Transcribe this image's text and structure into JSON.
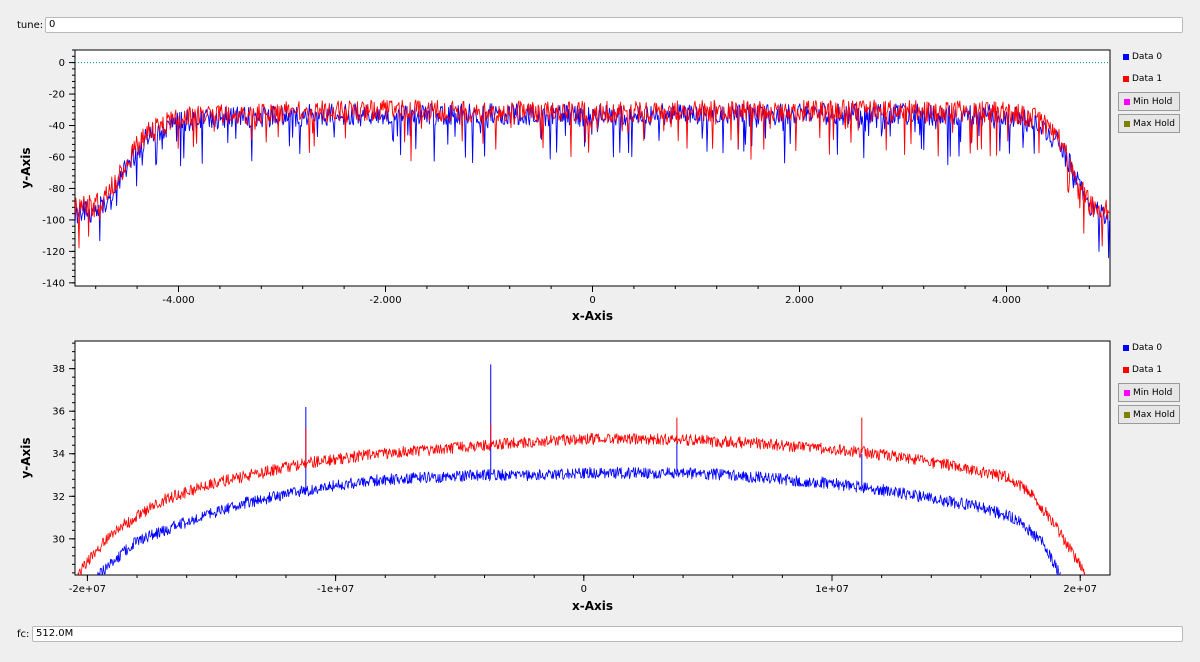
{
  "tune": {
    "label": "tune:",
    "value": "0"
  },
  "fc": {
    "label": "fc:",
    "value": "512.0M"
  },
  "legend_items": [
    {
      "label": "Data 0",
      "color": "#0000ff",
      "boxed": false
    },
    {
      "label": "Data 1",
      "color": "#ff0000",
      "boxed": false
    },
    {
      "label": "Min Hold",
      "color": "#ff00ff",
      "boxed": true
    },
    {
      "label": "Max Hold",
      "color": "#808000",
      "boxed": true
    }
  ],
  "chart_data": [
    {
      "type": "line",
      "xlabel": "x-Axis",
      "ylabel": "y-Axis",
      "xlim": [
        -5000,
        5000
      ],
      "ylim": [
        -142,
        8
      ],
      "xticks": [
        -4000,
        -2000,
        0,
        2000,
        4000
      ],
      "xtick_labels": [
        "-4.000",
        "-2.000",
        "0",
        "2.000",
        "4.000"
      ],
      "yticks": [
        0,
        -20,
        -40,
        -60,
        -80,
        -100,
        -120,
        -140
      ],
      "ytick_labels": [
        "0",
        "-20",
        "-40",
        "-60",
        "-80",
        "-100",
        "-120",
        "-140"
      ],
      "reference_line": {
        "y": 0,
        "color": "#008b8b",
        "style": "dotted"
      },
      "series": [
        {
          "name": "Data 0",
          "color": "#0000ff",
          "x": [
            -5000,
            -4800,
            -4700,
            -4500,
            -4300,
            -4000,
            -3000,
            -2000,
            -1000,
            0,
            1000,
            2000,
            3000,
            4000,
            4300,
            4500,
            4700,
            4800,
            5000
          ],
          "y": [
            -95,
            -94,
            -88,
            -65,
            -46,
            -36,
            -33,
            -32,
            -32,
            -33,
            -32,
            -32,
            -32,
            -33,
            -38,
            -50,
            -75,
            -92,
            -96
          ]
        },
        {
          "name": "Data 1",
          "color": "#ff0000",
          "x": [
            -5000,
            -4800,
            -4700,
            -4500,
            -4300,
            -4000,
            -3000,
            -2000,
            -1000,
            0,
            1000,
            2000,
            3000,
            4000,
            4300,
            4500,
            4700,
            4800,
            5000
          ],
          "y": [
            -91,
            -90,
            -85,
            -62,
            -43,
            -34,
            -31,
            -30,
            -30,
            -31,
            -30,
            -30,
            -30,
            -31,
            -35,
            -47,
            -72,
            -89,
            -93
          ]
        }
      ]
    },
    {
      "type": "line",
      "xlabel": "x-Axis",
      "ylabel": "y-Axis",
      "xlim": [
        -20500000,
        21200000
      ],
      "ylim": [
        28.3,
        39.3
      ],
      "xticks": [
        -20000000,
        -10000000,
        0,
        10000000,
        20000000
      ],
      "xtick_labels": [
        "-2e+07",
        "-1e+07",
        "0",
        "1e+07",
        "2e+07"
      ],
      "yticks": [
        30,
        32,
        34,
        36,
        38
      ],
      "ytick_labels": [
        "30",
        "32",
        "34",
        "36",
        "38"
      ],
      "series": [
        {
          "name": "Data 0",
          "color": "#0000ff",
          "x": [
            -19600000,
            -18000000,
            -16000000,
            -14000000,
            -12000000,
            -10000000,
            -8000000,
            -6000000,
            -4000000,
            -2000000,
            0,
            2000000,
            4000000,
            6000000,
            8000000,
            10000000,
            12000000,
            14000000,
            16000000,
            17500000,
            18500000,
            19200000
          ],
          "y": [
            28.3,
            29.9,
            30.8,
            31.6,
            32.1,
            32.5,
            32.8,
            32.9,
            33.0,
            33.0,
            33.1,
            33.1,
            33.1,
            33.0,
            32.8,
            32.6,
            32.3,
            31.9,
            31.5,
            30.9,
            29.8,
            28.3
          ],
          "spikes": [
            {
              "x": -11200000,
              "y": 36.2
            },
            {
              "x": -3750000,
              "y": 38.2
            },
            {
              "x": 3750000,
              "y": 34.6
            },
            {
              "x": 11200000,
              "y": 34.0
            }
          ]
        },
        {
          "name": "Data 1",
          "color": "#ff0000",
          "x": [
            -20400000,
            -19000000,
            -17000000,
            -15000000,
            -13000000,
            -11000000,
            -9000000,
            -7000000,
            -5000000,
            -3000000,
            0,
            3000000,
            5000000,
            7000000,
            9000000,
            11000000,
            13000000,
            15000000,
            17000000,
            18000000,
            19000000,
            20200000
          ],
          "y": [
            28.3,
            30.3,
            31.8,
            32.6,
            33.1,
            33.6,
            33.9,
            34.1,
            34.3,
            34.5,
            34.7,
            34.7,
            34.6,
            34.5,
            34.3,
            34.1,
            33.8,
            33.4,
            32.9,
            32.2,
            30.6,
            28.4
          ],
          "spikes": [
            {
              "x": -11200000,
              "y": 35.2
            },
            {
              "x": -3750000,
              "y": 35.4
            },
            {
              "x": 3750000,
              "y": 35.7
            },
            {
              "x": 11200000,
              "y": 35.7
            }
          ]
        }
      ]
    }
  ]
}
